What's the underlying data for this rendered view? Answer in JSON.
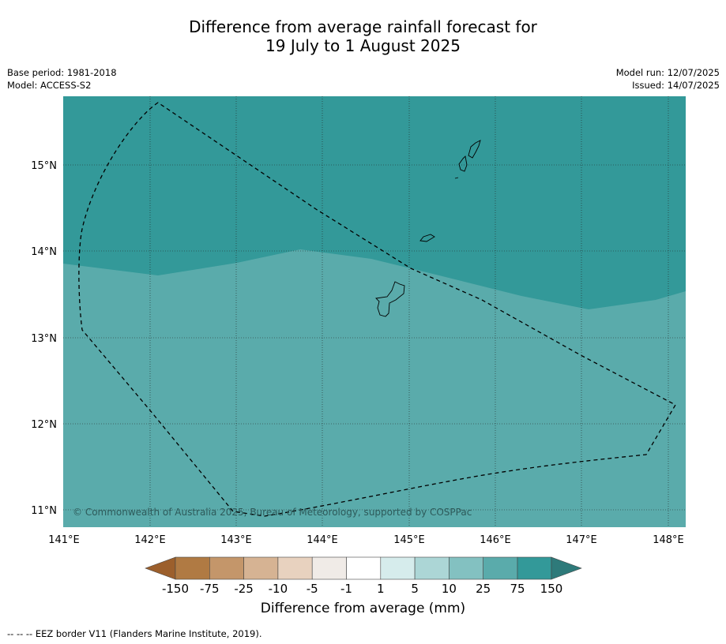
{
  "title": {
    "line1": "Difference from average rainfall forecast for",
    "line2": "19 July to 1 August 2025"
  },
  "meta_left": {
    "base_period": "Base period: 1981-2018",
    "model": "Model: ACCESS-S2"
  },
  "meta_right": {
    "model_run": "Model run: 12/07/2025",
    "issued": "Issued: 14/07/2025"
  },
  "map": {
    "copyright": "© Commonwealth of Australia 2025, Bureau of Meteorology, supported by COSPPac",
    "lon_ticks": [
      "141°E",
      "142°E",
      "143°E",
      "144°E",
      "145°E",
      "146°E",
      "147°E",
      "148°E"
    ],
    "lat_ticks": [
      "15°N",
      "14°N",
      "13°N",
      "12°N",
      "11°N"
    ],
    "colors": {
      "above_75": "#339999",
      "range_25_75": "#5aabab",
      "land_outline": "#000000",
      "eez_line": "#000000"
    }
  },
  "colorbar": {
    "tick_labels": [
      "-150",
      "-75",
      "-25",
      "-10",
      "-5",
      "-1",
      "1",
      "5",
      "10",
      "25",
      "75",
      "150"
    ],
    "colors": [
      "#9c5f2c",
      "#b07a43",
      "#c4966a",
      "#d6b393",
      "#e8d2bf",
      "#f0ebe7",
      "#ffffff",
      "#d6ecec",
      "#acd6d6",
      "#83c1c1",
      "#5aabab",
      "#339999",
      "#2e7a7a"
    ],
    "caption": "Difference from average (mm)"
  },
  "footnote": "--  --  -- EEZ border V11 (Flanders Marine Institute, 2019)."
}
